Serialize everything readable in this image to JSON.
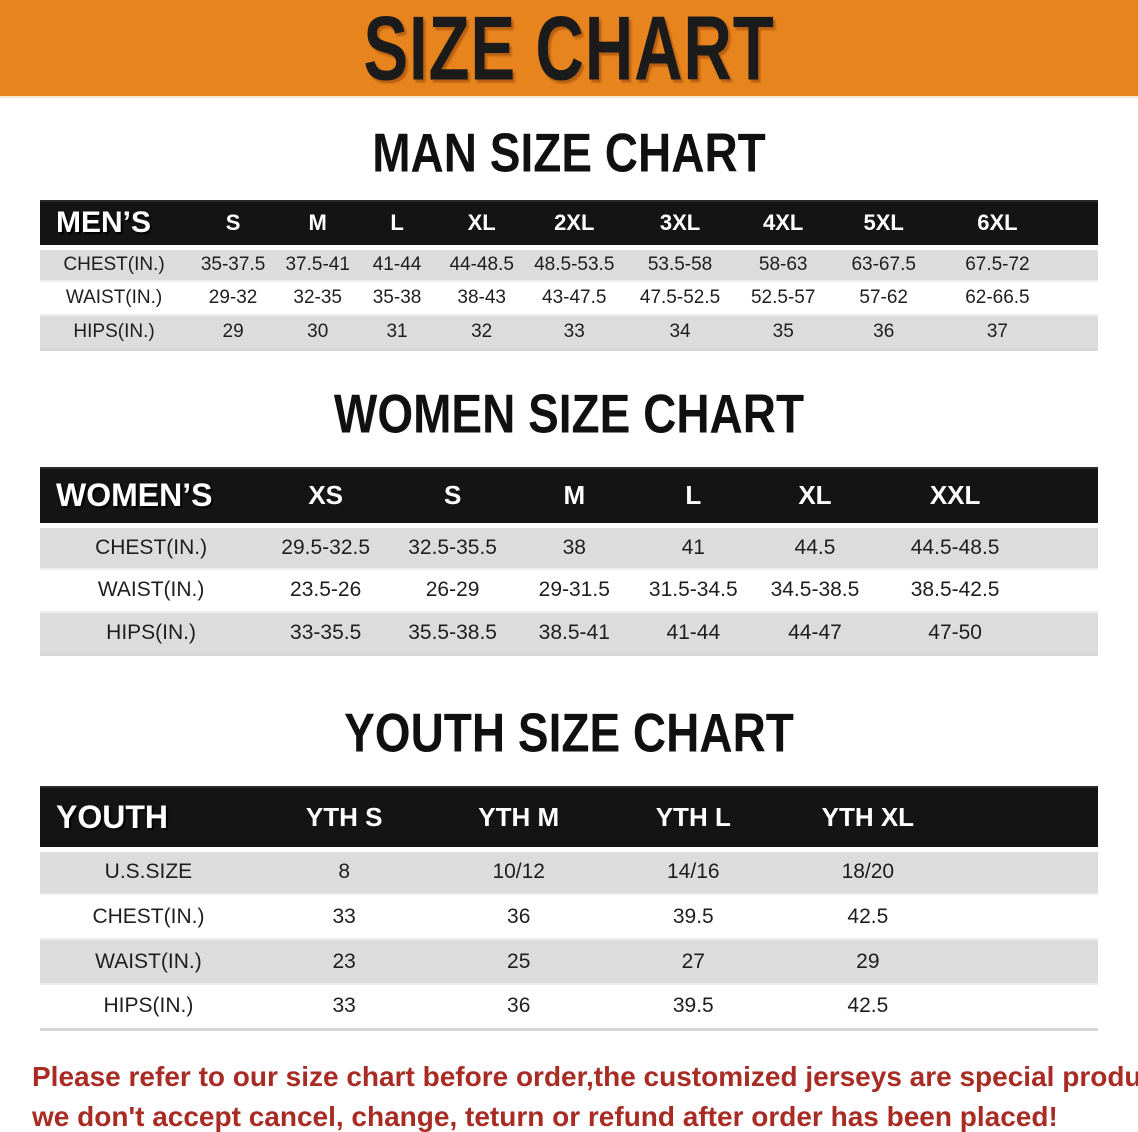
{
  "banner": {
    "title": "SIZE CHART",
    "bg_color": "#E8841E",
    "text_color": "#1B1B1B"
  },
  "men": {
    "heading": "MAN SIZE CHART",
    "table": {
      "header": [
        "MEN’S",
        "S",
        "M",
        "L",
        "XL",
        "2XL",
        "3XL",
        "4XL",
        "5XL",
        "6XL"
      ],
      "rows": [
        {
          "label": "CHEST(IN.)",
          "values": [
            "35-37.5",
            "37.5-41",
            "41-44",
            "44-48.5",
            "48.5-53.5",
            "53.5-58",
            "58-63",
            "63-67.5",
            "67.5-72"
          ]
        },
        {
          "label": "WAIST(IN.)",
          "values": [
            "29-32",
            "32-35",
            "35-38",
            "38-43",
            "43-47.5",
            "47.5-52.5",
            "52.5-57",
            "57-62",
            "62-66.5"
          ]
        },
        {
          "label": "HIPS(IN.)",
          "values": [
            "29",
            "30",
            "31",
            "32",
            "33",
            "34",
            "35",
            "36",
            "37"
          ]
        }
      ]
    }
  },
  "women": {
    "heading": "WOMEN SIZE CHART",
    "table": {
      "header": [
        "WOMEN’S",
        "XS",
        "S",
        "M",
        "L",
        "XL",
        "XXL"
      ],
      "rows": [
        {
          "label": "CHEST(IN.)",
          "values": [
            "29.5-32.5",
            "32.5-35.5",
            "38",
            "41",
            "44.5",
            "44.5-48.5"
          ]
        },
        {
          "label": "WAIST(IN.)",
          "values": [
            "23.5-26",
            "26-29",
            "29-31.5",
            "31.5-34.5",
            "34.5-38.5",
            "38.5-42.5"
          ]
        },
        {
          "label": "HIPS(IN.)",
          "values": [
            "33-35.5",
            "35.5-38.5",
            "38.5-41",
            "41-44",
            "44-47",
            "47-50"
          ]
        }
      ]
    }
  },
  "youth": {
    "heading": "YOUTH SIZE CHART",
    "table": {
      "header": [
        "YOUTH",
        "YTH S",
        "YTH M",
        "YTH L",
        "YTH XL"
      ],
      "rows": [
        {
          "label": "U.S.SIZE",
          "values": [
            "8",
            "10/12",
            "14/16",
            "18/20"
          ]
        },
        {
          "label": "CHEST(IN.)",
          "values": [
            "33",
            "36",
            "39.5",
            "42.5"
          ]
        },
        {
          "label": "WAIST(IN.)",
          "values": [
            "23",
            "25",
            "27",
            "29"
          ]
        },
        {
          "label": "HIPS(IN.)",
          "values": [
            "33",
            "36",
            "39.5",
            "42.5"
          ]
        }
      ]
    }
  },
  "disclaimer": {
    "line1": "Please refer to our size chart before order,the customized jerseys are special products,",
    "line2": "we don't accept cancel, change, teturn or refund after order has been placed!",
    "text_color": "#A82B24"
  },
  "colors": {
    "header_row_bg": "#141414",
    "stripe_row_bg": "#DCDCDC",
    "banner_orange": "#E8841E",
    "disclaimer_red": "#A82B24"
  }
}
